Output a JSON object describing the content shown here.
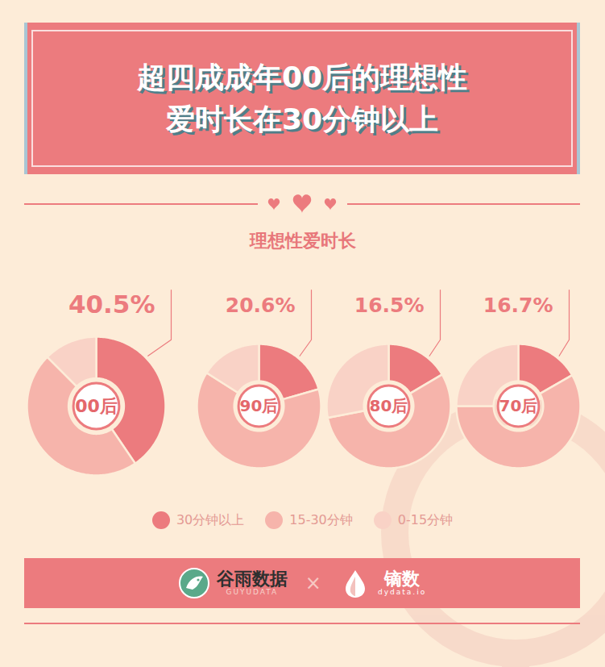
{
  "chart_data": {
    "type": "donut",
    "title": "超四成成年00后的理想性爱时长在30分钟以上",
    "subtitle": "理想性爱时长",
    "categories": [
      "00后",
      "90后",
      "80后",
      "70后"
    ],
    "series": [
      {
        "name": "30分钟以上",
        "color": "#ec7b7e",
        "values": [
          40.5,
          20.6,
          16.5,
          16.7
        ],
        "value_labels": [
          "40.5%",
          "20.6%",
          "16.5%",
          "16.7%"
        ]
      },
      {
        "name": "15-30分钟",
        "color": "#f6b4ab",
        "values": [
          47.0,
          63.4,
          55.5,
          58.3
        ]
      },
      {
        "name": "0-15分钟",
        "color": "#f9d2c6",
        "values": [
          12.5,
          16.0,
          28.0,
          25.0
        ]
      }
    ],
    "legend": "bottom"
  },
  "footer": {
    "brands": [
      {
        "name": "谷雨数据",
        "subtitle": "GUYUDATA"
      },
      {
        "name": "镝数",
        "subtitle": "dydata.io"
      }
    ],
    "separator": "×"
  }
}
